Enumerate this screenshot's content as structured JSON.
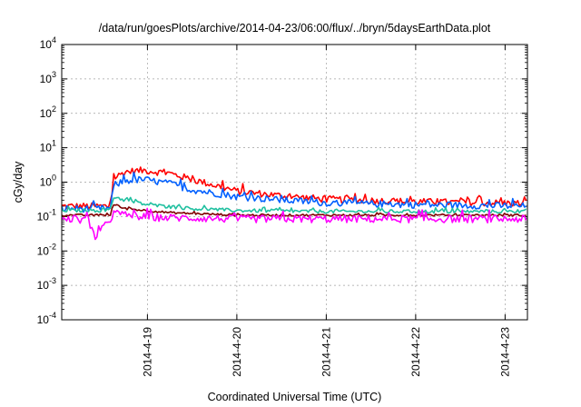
{
  "chart_data": {
    "type": "line",
    "title": "/data/run/goesPlots/archive/2014-04-23/06:00/flux/../bryn/5daysEarthData.plot",
    "xlabel": "Coordinated Universal Time (UTC)",
    "ylabel": "cGy/day",
    "yscale": "log",
    "ylim": [
      0.0001,
      10000
    ],
    "y_ticks": [
      {
        "base": "10",
        "exp": "-4"
      },
      {
        "base": "10",
        "exp": "-3"
      },
      {
        "base": "10",
        "exp": "-2"
      },
      {
        "base": "10",
        "exp": "-1"
      },
      {
        "base": "10",
        "exp": "0"
      },
      {
        "base": "10",
        "exp": "1"
      },
      {
        "base": "10",
        "exp": "2"
      },
      {
        "base": "10",
        "exp": "3"
      },
      {
        "base": "10",
        "exp": "4"
      }
    ],
    "xlim": [
      "2014-04-18 01:00",
      "2014-04-23 06:00"
    ],
    "x_ticks": [
      "2014-4-19",
      "2014-4-20",
      "2014-4-21",
      "2014-4-22",
      "2014-4-23"
    ],
    "grid": true,
    "legend": "none",
    "series": [
      {
        "color": "#ff0000",
        "noise": 0.1,
        "x": [
          "2014-04-18 01:00",
          "2014-04-18 12:00",
          "2014-04-18 14:00",
          "2014-04-18 15:00",
          "2014-04-18 18:00",
          "2014-04-18 23:00",
          "2014-04-19 06:00",
          "2014-04-19 12:00",
          "2014-04-20 00:00",
          "2014-04-20 12:00",
          "2014-04-21 00:00",
          "2014-04-22 00:00",
          "2014-04-23 06:00"
        ],
        "values": [
          0.2,
          0.2,
          0.2,
          1.3,
          2.0,
          2.2,
          1.8,
          1.2,
          0.55,
          0.4,
          0.32,
          0.27,
          0.24
        ]
      },
      {
        "color": "#0060ff",
        "noise": 0.1,
        "x": [
          "2014-04-18 01:00",
          "2014-04-18 12:00",
          "2014-04-18 14:00",
          "2014-04-18 15:00",
          "2014-04-18 18:00",
          "2014-04-18 23:00",
          "2014-04-19 06:00",
          "2014-04-19 12:00",
          "2014-04-20 00:00",
          "2014-04-20 12:00",
          "2014-04-21 00:00",
          "2014-04-22 00:00",
          "2014-04-23 06:00"
        ],
        "values": [
          0.17,
          0.17,
          0.17,
          0.8,
          1.1,
          1.2,
          0.9,
          0.6,
          0.38,
          0.3,
          0.25,
          0.22,
          0.2
        ]
      },
      {
        "color": "#20c0a0",
        "noise": 0.05,
        "x": [
          "2014-04-18 01:00",
          "2014-04-18 12:00",
          "2014-04-18 14:00",
          "2014-04-18 15:00",
          "2014-04-18 18:00",
          "2014-04-19 00:00",
          "2014-04-19 12:00",
          "2014-04-20 00:00",
          "2014-04-21 00:00",
          "2014-04-23 06:00"
        ],
        "values": [
          0.15,
          0.15,
          0.15,
          0.38,
          0.3,
          0.22,
          0.17,
          0.15,
          0.14,
          0.14
        ]
      },
      {
        "color": "#800000",
        "noise": 0.03,
        "x": [
          "2014-04-18 01:00",
          "2014-04-18 12:00",
          "2014-04-18 14:00",
          "2014-04-18 15:00",
          "2014-04-18 18:00",
          "2014-04-19 06:00",
          "2014-04-20 00:00",
          "2014-04-23 06:00"
        ],
        "values": [
          0.11,
          0.11,
          0.11,
          0.22,
          0.17,
          0.13,
          0.11,
          0.11
        ]
      },
      {
        "color": "#ff00ff",
        "noise": 0.11,
        "x": [
          "2014-04-18 01:00",
          "2014-04-18 08:00",
          "2014-04-18 10:00",
          "2014-04-18 14:00",
          "2014-04-18 15:00",
          "2014-04-18 18:00",
          "2014-04-19 00:00",
          "2014-04-20 00:00",
          "2014-04-23 06:00"
        ],
        "values": [
          0.08,
          0.08,
          0.025,
          0.08,
          0.13,
          0.11,
          0.095,
          0.085,
          0.085
        ]
      }
    ]
  }
}
